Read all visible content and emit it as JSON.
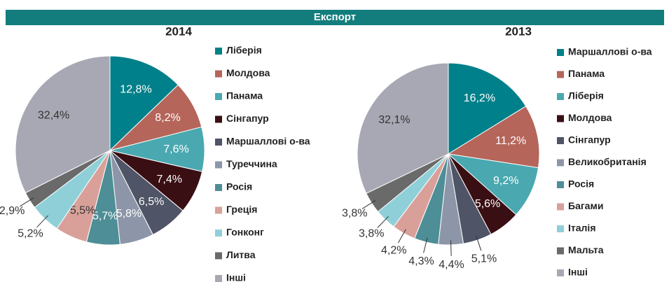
{
  "banner": "Експорт",
  "chart_data": [
    {
      "type": "pie",
      "title": "2014",
      "categories": [
        "Ліберія",
        "Молдова",
        "Панама",
        "Сінгапур",
        "Маршаллові о-ва",
        "Туреччина",
        "Росія",
        "Греція",
        "Гонконг",
        "Литва",
        "Інші"
      ],
      "values": [
        12.8,
        8.2,
        7.6,
        7.4,
        6.5,
        5.8,
        5.7,
        5.5,
        5.2,
        2.9,
        32.4
      ],
      "value_labels": [
        "12,8%",
        "8,2%",
        "7,6%",
        "7,4%",
        "6,5%",
        "5,8%",
        "5,7%",
        "5,5%",
        "5,2%",
        "2,9%",
        "32,4%"
      ],
      "colors": [
        "#00808a",
        "#b5655a",
        "#4aa8b0",
        "#3a0f14",
        "#4f5466",
        "#8d96a8",
        "#4e8e96",
        "#d9a09a",
        "#8fd0d8",
        "#6a6a6a",
        "#a8a8b4"
      ]
    },
    {
      "type": "pie",
      "title": "2013",
      "categories": [
        "Маршаллові о-ва",
        "Панама",
        "Ліберія",
        "Молдова",
        "Сінгапур",
        "Великобританія",
        "Росія",
        "Багами",
        "Італія",
        "Мальта",
        "Інші"
      ],
      "values": [
        16.2,
        11.2,
        9.2,
        5.6,
        5.1,
        4.4,
        4.3,
        4.2,
        3.8,
        3.8,
        32.1
      ],
      "value_labels": [
        "16,2%",
        "11,2%",
        "9,2%",
        "5,6%",
        "5,1%",
        "4,4%",
        "4,3%",
        "4,2%",
        "3,8%",
        "3,8%",
        "32,1%"
      ],
      "colors": [
        "#00808a",
        "#b5655a",
        "#4aa8b0",
        "#3a0f14",
        "#4f5466",
        "#8d96a8",
        "#4e8e96",
        "#d9a09a",
        "#8fd0d8",
        "#6a6a6a",
        "#a8a8b4"
      ]
    }
  ]
}
